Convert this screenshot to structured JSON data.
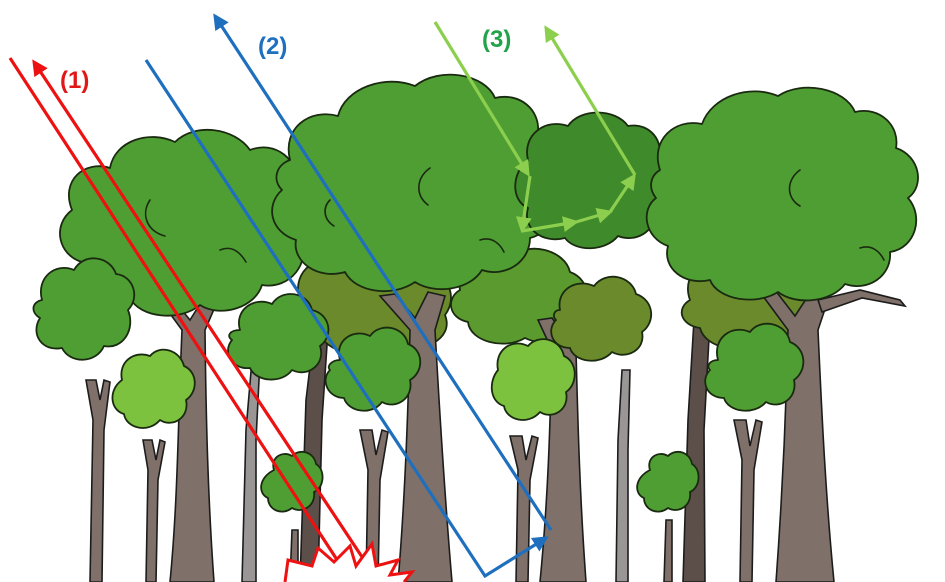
{
  "labels": {
    "path1": "(1)",
    "path2": "(2)",
    "path3": "(3)"
  },
  "colors": {
    "path1": "#ee1111",
    "path2": "#1f6fbf",
    "path3": "#8ccf4e",
    "label1": "#e01818",
    "label2": "#1f6fbf",
    "label3": "#22a34a",
    "canopy_dark": "#3f8a2a",
    "canopy_mid": "#4f9e33",
    "canopy_light": "#7cc23e",
    "canopy_olive": "#6b8a2c",
    "trunk": "#7f7069",
    "trunk_dark": "#5c4f4a",
    "trunk_gray": "#9a9696"
  },
  "icons": {
    "impact": "impact-burst-icon"
  }
}
